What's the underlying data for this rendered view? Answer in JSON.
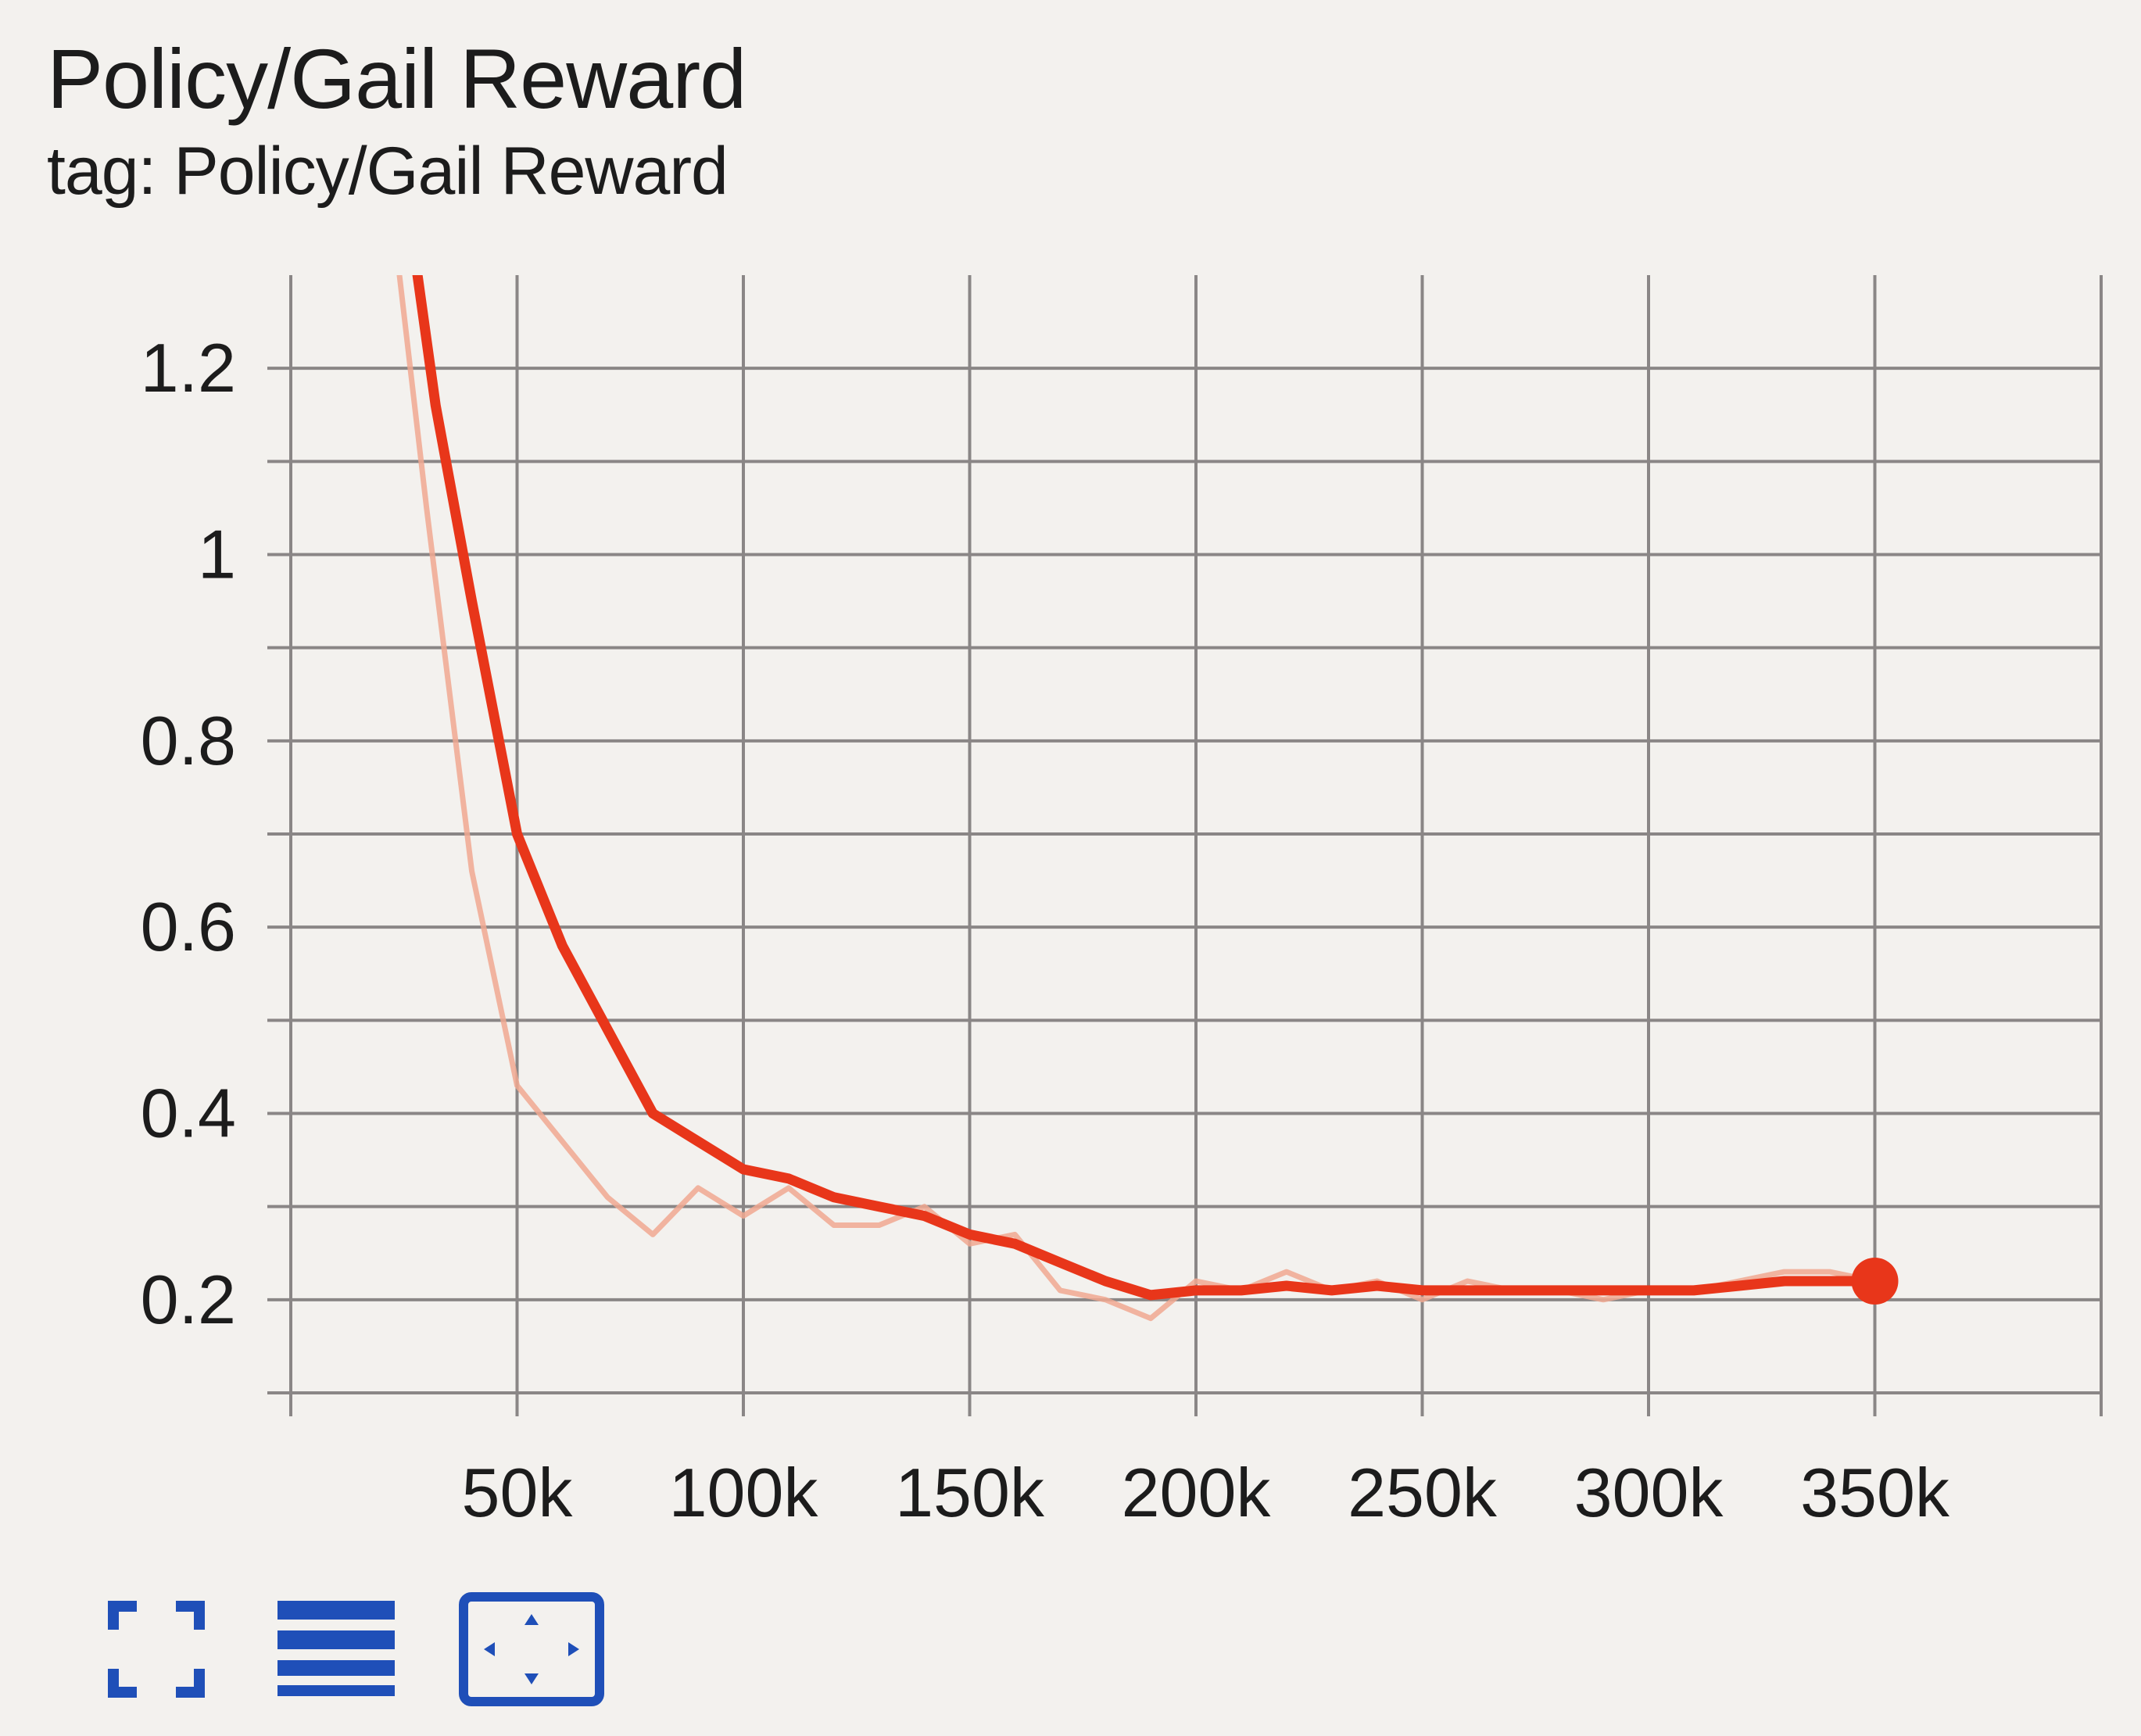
{
  "header": {
    "title": "Policy/Gail Reward",
    "subtitle": "tag: Policy/Gail Reward"
  },
  "toolbar": {
    "buttons": [
      {
        "name": "fullscreen-icon"
      },
      {
        "name": "menu-lines-icon"
      },
      {
        "name": "fit-domain-icon"
      }
    ]
  },
  "colors": {
    "background": "#f3f1ee",
    "smoothed_line": "#e8361a",
    "raw_line": "#f0a890",
    "grid": "#8a8686",
    "icon_blue": "#1f4fb8"
  },
  "chart_data": {
    "type": "line",
    "title": "Policy/Gail Reward",
    "subtitle": "tag: Policy/Gail Reward",
    "xlabel": "",
    "ylabel": "",
    "xlim": [
      0,
      400000
    ],
    "ylim": [
      0.1,
      1.3
    ],
    "x_ticks": [
      50000,
      100000,
      150000,
      200000,
      250000,
      300000,
      350000
    ],
    "x_tick_labels": [
      "50k",
      "100k",
      "150k",
      "200k",
      "250k",
      "300k",
      "350k"
    ],
    "y_ticks": [
      0.2,
      0.4,
      0.6,
      0.8,
      1.0,
      1.2
    ],
    "y_tick_labels": [
      "0.2",
      "0.4",
      "0.6",
      "0.8",
      "1",
      "1.2"
    ],
    "grid": true,
    "series": [
      {
        "role": "raw",
        "x": [
          24000,
          30000,
          40000,
          50000,
          60000,
          70000,
          80000,
          90000,
          100000,
          110000,
          120000,
          130000,
          140000,
          150000,
          160000,
          170000,
          180000,
          190000,
          200000,
          210000,
          220000,
          230000,
          240000,
          250000,
          260000,
          270000,
          280000,
          290000,
          300000,
          310000,
          320000,
          330000,
          340000,
          350000
        ],
        "y": [
          1.3,
          1.05,
          0.66,
          0.43,
          0.37,
          0.31,
          0.27,
          0.32,
          0.29,
          0.32,
          0.28,
          0.28,
          0.3,
          0.26,
          0.27,
          0.21,
          0.2,
          0.18,
          0.22,
          0.21,
          0.23,
          0.21,
          0.22,
          0.2,
          0.22,
          0.21,
          0.21,
          0.2,
          0.21,
          0.21,
          0.22,
          0.23,
          0.23,
          0.22
        ]
      },
      {
        "role": "smoothed",
        "x": [
          28000,
          32000,
          40000,
          50000,
          60000,
          70000,
          80000,
          90000,
          100000,
          110000,
          120000,
          130000,
          140000,
          150000,
          160000,
          170000,
          180000,
          190000,
          200000,
          210000,
          220000,
          230000,
          240000,
          250000,
          260000,
          270000,
          280000,
          290000,
          300000,
          310000,
          320000,
          330000,
          340000,
          350000
        ],
        "y": [
          1.3,
          1.16,
          0.95,
          0.7,
          0.58,
          0.49,
          0.4,
          0.37,
          0.34,
          0.33,
          0.31,
          0.3,
          0.29,
          0.27,
          0.26,
          0.24,
          0.22,
          0.205,
          0.21,
          0.21,
          0.215,
          0.21,
          0.215,
          0.21,
          0.21,
          0.21,
          0.21,
          0.21,
          0.21,
          0.21,
          0.215,
          0.22,
          0.22,
          0.22
        ]
      }
    ],
    "highlight_point": {
      "x": 350000,
      "y": 0.22
    }
  }
}
